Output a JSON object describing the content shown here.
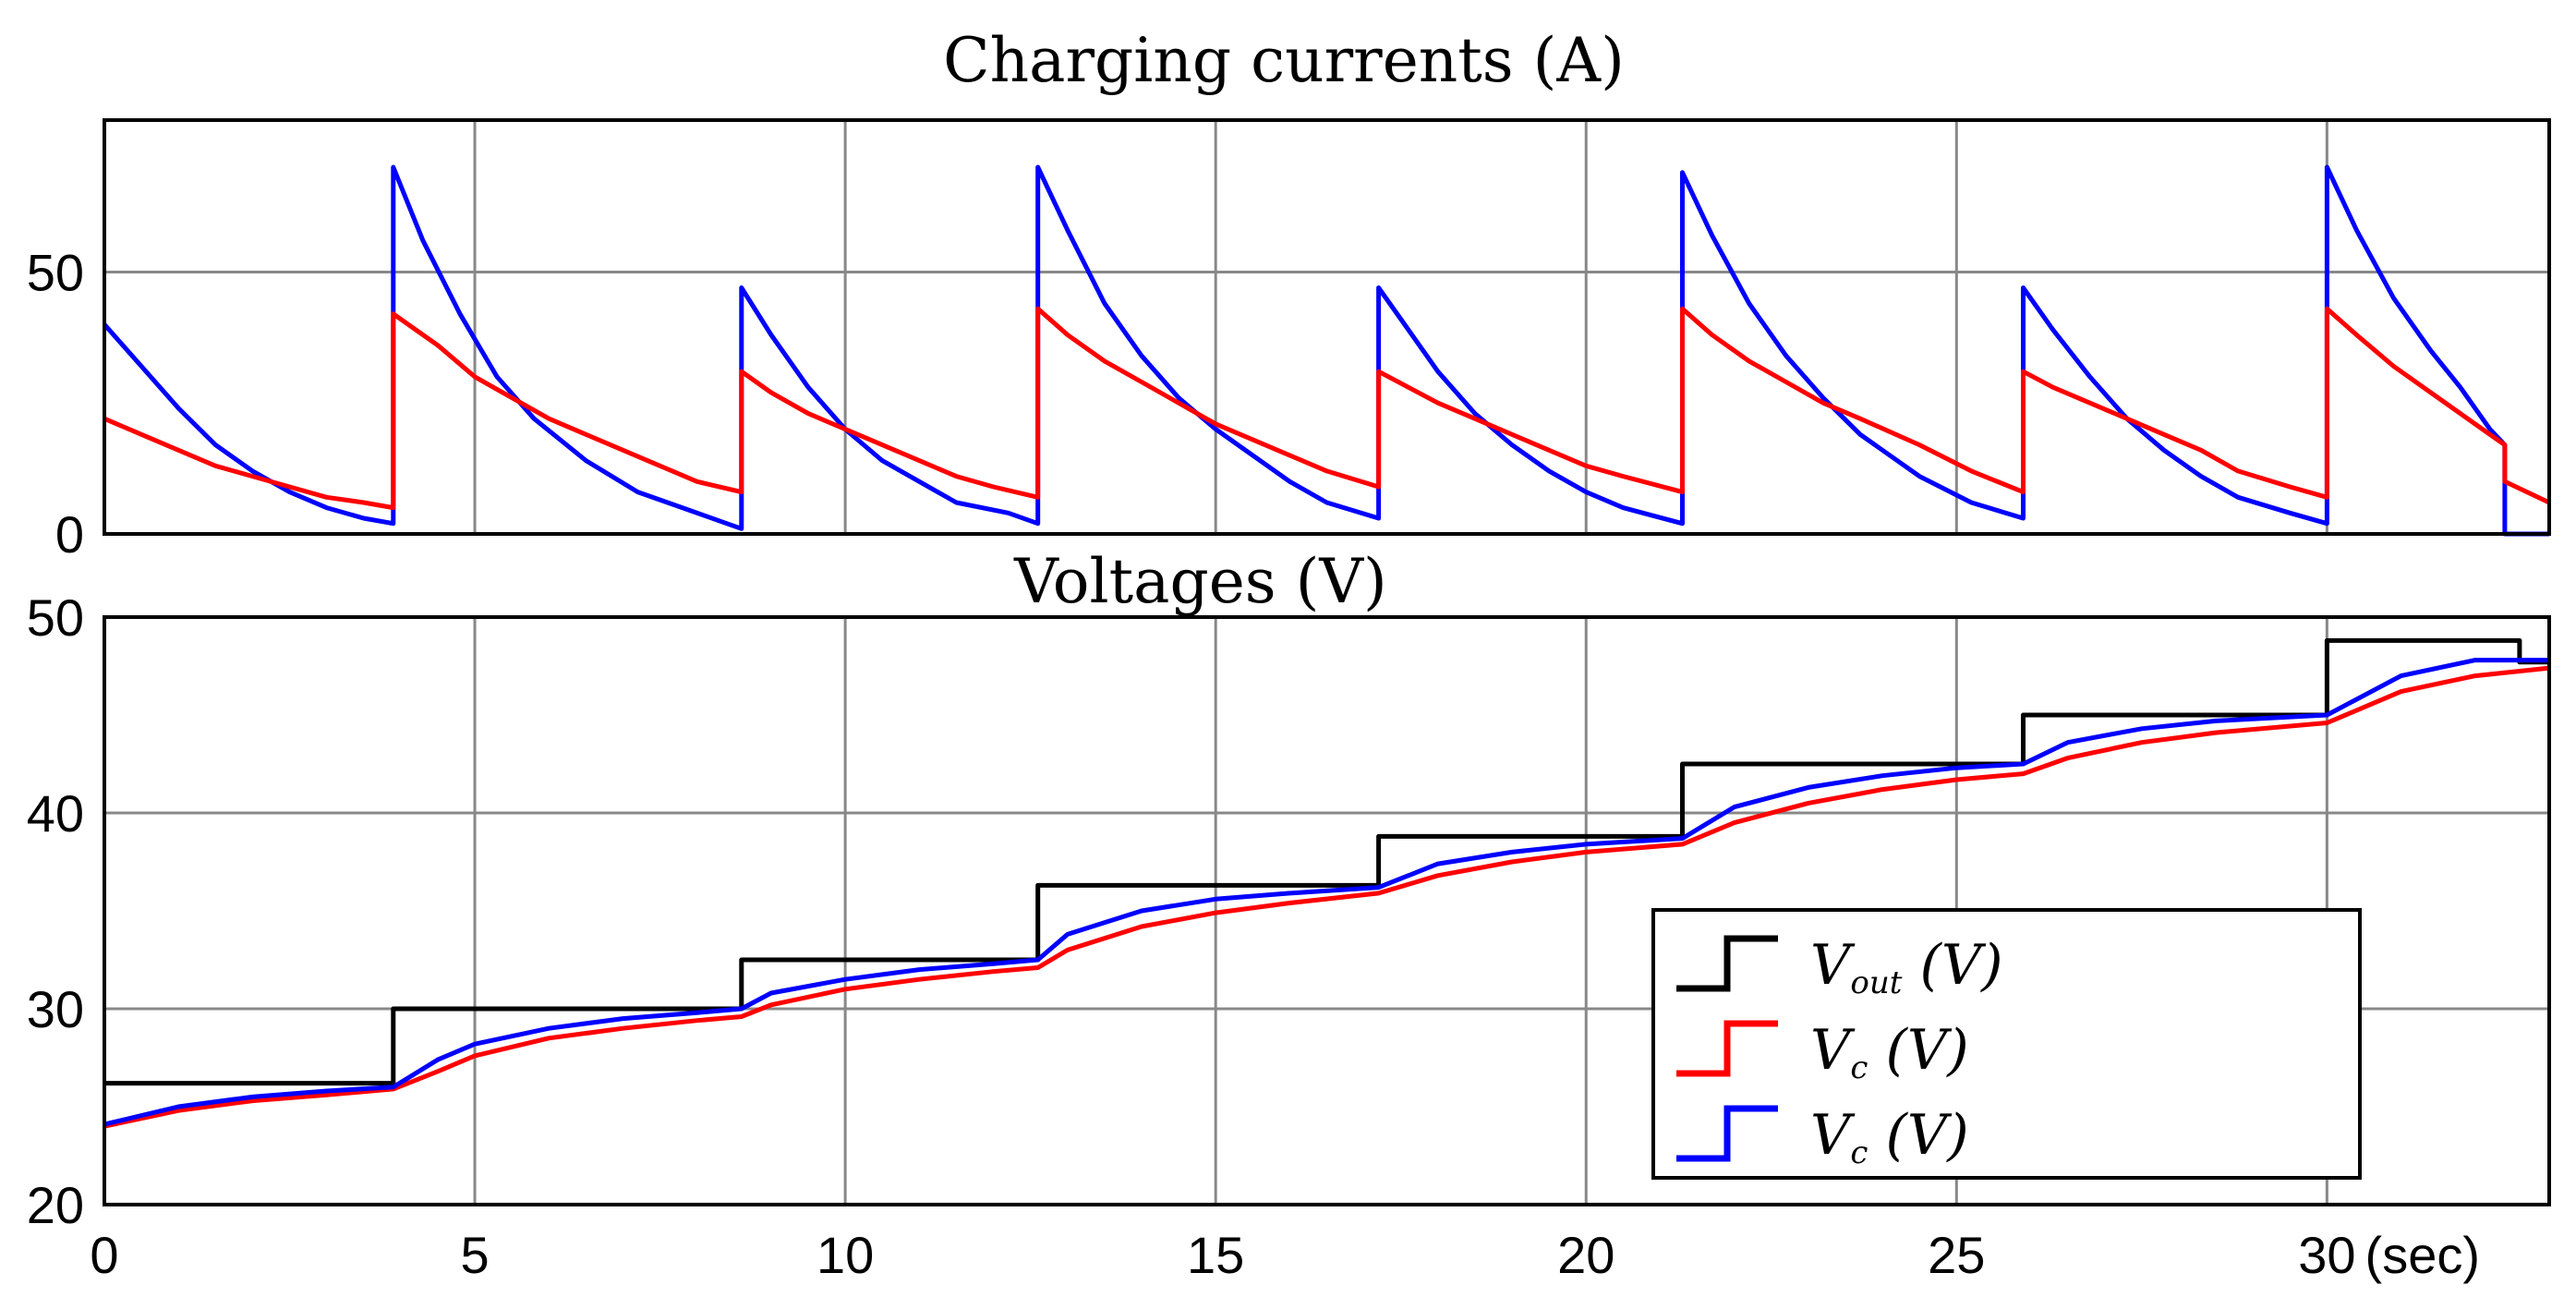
{
  "chart_data": [
    {
      "type": "line",
      "title": "Charging currents (A)",
      "xlim": [
        0,
        33
      ],
      "ylim": [
        0,
        79
      ],
      "yticks": [
        0,
        50
      ],
      "xticks": [
        0,
        5,
        10,
        15,
        20,
        25,
        30
      ],
      "grid": true,
      "legend": null,
      "series": [
        {
          "name": "blue current",
          "color": "#0000ff",
          "points": [
            [
              0,
              40
            ],
            [
              0.5,
              32
            ],
            [
              1,
              24
            ],
            [
              1.5,
              17
            ],
            [
              2,
              12
            ],
            [
              2.5,
              8
            ],
            [
              3,
              5
            ],
            [
              3.5,
              3
            ],
            [
              3.9,
              2
            ],
            [
              3.9,
              70
            ],
            [
              4.3,
              56
            ],
            [
              4.8,
              42
            ],
            [
              5.3,
              30
            ],
            [
              5.8,
              22
            ],
            [
              6.5,
              14
            ],
            [
              7.2,
              8
            ],
            [
              7.8,
              5
            ],
            [
              8.4,
              2
            ],
            [
              8.6,
              1
            ],
            [
              8.6,
              47
            ],
            [
              9,
              38
            ],
            [
              9.5,
              28
            ],
            [
              10,
              20
            ],
            [
              10.5,
              14
            ],
            [
              11,
              10
            ],
            [
              11.5,
              6
            ],
            [
              12.2,
              4
            ],
            [
              12.6,
              2
            ],
            [
              12.6,
              70
            ],
            [
              13,
              58
            ],
            [
              13.5,
              44
            ],
            [
              14,
              34
            ],
            [
              14.5,
              26
            ],
            [
              15,
              20
            ],
            [
              15.5,
              15
            ],
            [
              16,
              10
            ],
            [
              16.5,
              6
            ],
            [
              17.2,
              3
            ],
            [
              17.2,
              47
            ],
            [
              17.6,
              39
            ],
            [
              18,
              31
            ],
            [
              18.5,
              23
            ],
            [
              19,
              17
            ],
            [
              19.5,
              12
            ],
            [
              20,
              8
            ],
            [
              20.5,
              5
            ],
            [
              21.3,
              2
            ],
            [
              21.3,
              69
            ],
            [
              21.7,
              57
            ],
            [
              22.2,
              44
            ],
            [
              22.7,
              34
            ],
            [
              23.2,
              26
            ],
            [
              23.7,
              19
            ],
            [
              24.5,
              11
            ],
            [
              25.2,
              6
            ],
            [
              25.9,
              3
            ],
            [
              25.9,
              47
            ],
            [
              26.3,
              39
            ],
            [
              26.8,
              30
            ],
            [
              27.3,
              22
            ],
            [
              27.8,
              16
            ],
            [
              28.3,
              11
            ],
            [
              28.8,
              7
            ],
            [
              29.5,
              4
            ],
            [
              30,
              2
            ],
            [
              30,
              70
            ],
            [
              30.4,
              58
            ],
            [
              30.9,
              45
            ],
            [
              31.4,
              35
            ],
            [
              31.8,
              28
            ],
            [
              32.2,
              20
            ],
            [
              32.4,
              17
            ],
            [
              32.4,
              0
            ],
            [
              33,
              0
            ]
          ]
        },
        {
          "name": "red current",
          "color": "#ff0000",
          "points": [
            [
              0,
              22
            ],
            [
              0.5,
              19
            ],
            [
              1,
              16
            ],
            [
              1.5,
              13
            ],
            [
              2,
              11
            ],
            [
              2.5,
              9
            ],
            [
              3,
              7
            ],
            [
              3.5,
              6
            ],
            [
              3.9,
              5
            ],
            [
              3.9,
              42
            ],
            [
              4.5,
              36
            ],
            [
              5,
              30
            ],
            [
              5.5,
              26
            ],
            [
              6,
              22
            ],
            [
              6.5,
              19
            ],
            [
              7,
              16
            ],
            [
              7.5,
              13
            ],
            [
              8,
              10
            ],
            [
              8.6,
              8
            ],
            [
              8.6,
              31
            ],
            [
              9,
              27
            ],
            [
              9.5,
              23
            ],
            [
              10,
              20
            ],
            [
              10.5,
              17
            ],
            [
              11,
              14
            ],
            [
              11.5,
              11
            ],
            [
              12,
              9
            ],
            [
              12.6,
              7
            ],
            [
              12.6,
              43
            ],
            [
              13,
              38
            ],
            [
              13.5,
              33
            ],
            [
              14,
              29
            ],
            [
              14.5,
              25
            ],
            [
              15,
              21
            ],
            [
              15.5,
              18
            ],
            [
              16,
              15
            ],
            [
              16.5,
              12
            ],
            [
              17.2,
              9
            ],
            [
              17.2,
              31
            ],
            [
              17.6,
              28
            ],
            [
              18,
              25
            ],
            [
              18.5,
              22
            ],
            [
              19,
              19
            ],
            [
              19.5,
              16
            ],
            [
              20,
              13
            ],
            [
              20.5,
              11
            ],
            [
              21.3,
              8
            ],
            [
              21.3,
              43
            ],
            [
              21.7,
              38
            ],
            [
              22.2,
              33
            ],
            [
              22.7,
              29
            ],
            [
              23.2,
              25
            ],
            [
              23.7,
              22
            ],
            [
              24.5,
              17
            ],
            [
              25.2,
              12
            ],
            [
              25.9,
              8
            ],
            [
              25.9,
              31
            ],
            [
              26.3,
              28
            ],
            [
              26.8,
              25
            ],
            [
              27.3,
              22
            ],
            [
              27.8,
              19
            ],
            [
              28.3,
              16
            ],
            [
              28.8,
              12
            ],
            [
              29.5,
              9
            ],
            [
              30,
              7
            ],
            [
              30,
              43
            ],
            [
              30.4,
              38
            ],
            [
              30.9,
              32
            ],
            [
              31.4,
              27
            ],
            [
              31.8,
              23
            ],
            [
              32.2,
              19
            ],
            [
              32.4,
              17
            ],
            [
              32.4,
              10
            ],
            [
              33,
              6
            ]
          ]
        }
      ]
    },
    {
      "type": "line",
      "title": "Voltages (V)",
      "xlim": [
        0,
        33
      ],
      "ylim": [
        20,
        50
      ],
      "yticks": [
        20,
        30,
        40,
        50
      ],
      "xticks": [
        0,
        5,
        10,
        15,
        20,
        25,
        30
      ],
      "xunit": "(sec)",
      "grid": true,
      "legend": {
        "position": "bottom-right",
        "entries": [
          {
            "label": "V",
            "sub": "out",
            "unit": " (V)",
            "color": "#000000"
          },
          {
            "label": "V",
            "sub": "c",
            "unit": " (V)",
            "color": "#ff0000"
          },
          {
            "label": "V",
            "sub": "c",
            "unit": " (V)",
            "color": "#0000ff"
          }
        ]
      },
      "series": [
        {
          "name": "Vout (V)",
          "color": "#000000",
          "step": true,
          "points": [
            [
              0,
              26.2
            ],
            [
              3.9,
              26.2
            ],
            [
              3.9,
              30
            ],
            [
              8.6,
              30
            ],
            [
              8.6,
              32.5
            ],
            [
              12.6,
              32.5
            ],
            [
              12.6,
              36.3
            ],
            [
              17.2,
              36.3
            ],
            [
              17.2,
              38.8
            ],
            [
              21.3,
              38.8
            ],
            [
              21.3,
              42.5
            ],
            [
              25.9,
              42.5
            ],
            [
              25.9,
              45
            ],
            [
              30,
              45
            ],
            [
              30,
              48.8
            ],
            [
              32.6,
              48.8
            ],
            [
              32.6,
              47.7
            ],
            [
              33,
              47.7
            ]
          ]
        },
        {
          "name": "Vc (V) red",
          "color": "#ff0000",
          "points": [
            [
              0,
              24
            ],
            [
              1,
              24.8
            ],
            [
              2,
              25.3
            ],
            [
              3,
              25.6
            ],
            [
              3.9,
              25.9
            ],
            [
              4.5,
              26.8
            ],
            [
              5,
              27.6
            ],
            [
              6,
              28.5
            ],
            [
              7,
              29
            ],
            [
              8,
              29.4
            ],
            [
              8.6,
              29.6
            ],
            [
              9,
              30.2
            ],
            [
              10,
              31
            ],
            [
              11,
              31.5
            ],
            [
              12,
              31.9
            ],
            [
              12.6,
              32.1
            ],
            [
              13,
              33
            ],
            [
              14,
              34.2
            ],
            [
              15,
              34.9
            ],
            [
              16,
              35.4
            ],
            [
              17.2,
              35.9
            ],
            [
              18,
              36.8
            ],
            [
              19,
              37.5
            ],
            [
              20,
              38
            ],
            [
              21.3,
              38.4
            ],
            [
              22,
              39.5
            ],
            [
              23,
              40.5
            ],
            [
              24,
              41.2
            ],
            [
              25,
              41.7
            ],
            [
              25.9,
              42
            ],
            [
              26.5,
              42.8
            ],
            [
              27.5,
              43.6
            ],
            [
              28.5,
              44.1
            ],
            [
              30,
              44.6
            ],
            [
              31,
              46.2
            ],
            [
              32,
              47
            ],
            [
              33,
              47.4
            ]
          ]
        },
        {
          "name": "Vc (V) blue",
          "color": "#0000ff",
          "points": [
            [
              0,
              24.1
            ],
            [
              1,
              25
            ],
            [
              2,
              25.5
            ],
            [
              3,
              25.8
            ],
            [
              3.9,
              26
            ],
            [
              4.5,
              27.4
            ],
            [
              5,
              28.2
            ],
            [
              6,
              29
            ],
            [
              7,
              29.5
            ],
            [
              8,
              29.8
            ],
            [
              8.6,
              30
            ],
            [
              9,
              30.8
            ],
            [
              10,
              31.5
            ],
            [
              11,
              32
            ],
            [
              12,
              32.3
            ],
            [
              12.6,
              32.5
            ],
            [
              13,
              33.8
            ],
            [
              14,
              35
            ],
            [
              15,
              35.6
            ],
            [
              16,
              35.9
            ],
            [
              17.2,
              36.2
            ],
            [
              18,
              37.4
            ],
            [
              19,
              38
            ],
            [
              20,
              38.4
            ],
            [
              21.3,
              38.7
            ],
            [
              22,
              40.3
            ],
            [
              23,
              41.3
            ],
            [
              24,
              41.9
            ],
            [
              25,
              42.3
            ],
            [
              25.9,
              42.5
            ],
            [
              26.5,
              43.6
            ],
            [
              27.5,
              44.3
            ],
            [
              28.5,
              44.7
            ],
            [
              30,
              45
            ],
            [
              31,
              47
            ],
            [
              32,
              47.8
            ],
            [
              33,
              47.8
            ]
          ]
        }
      ]
    }
  ]
}
